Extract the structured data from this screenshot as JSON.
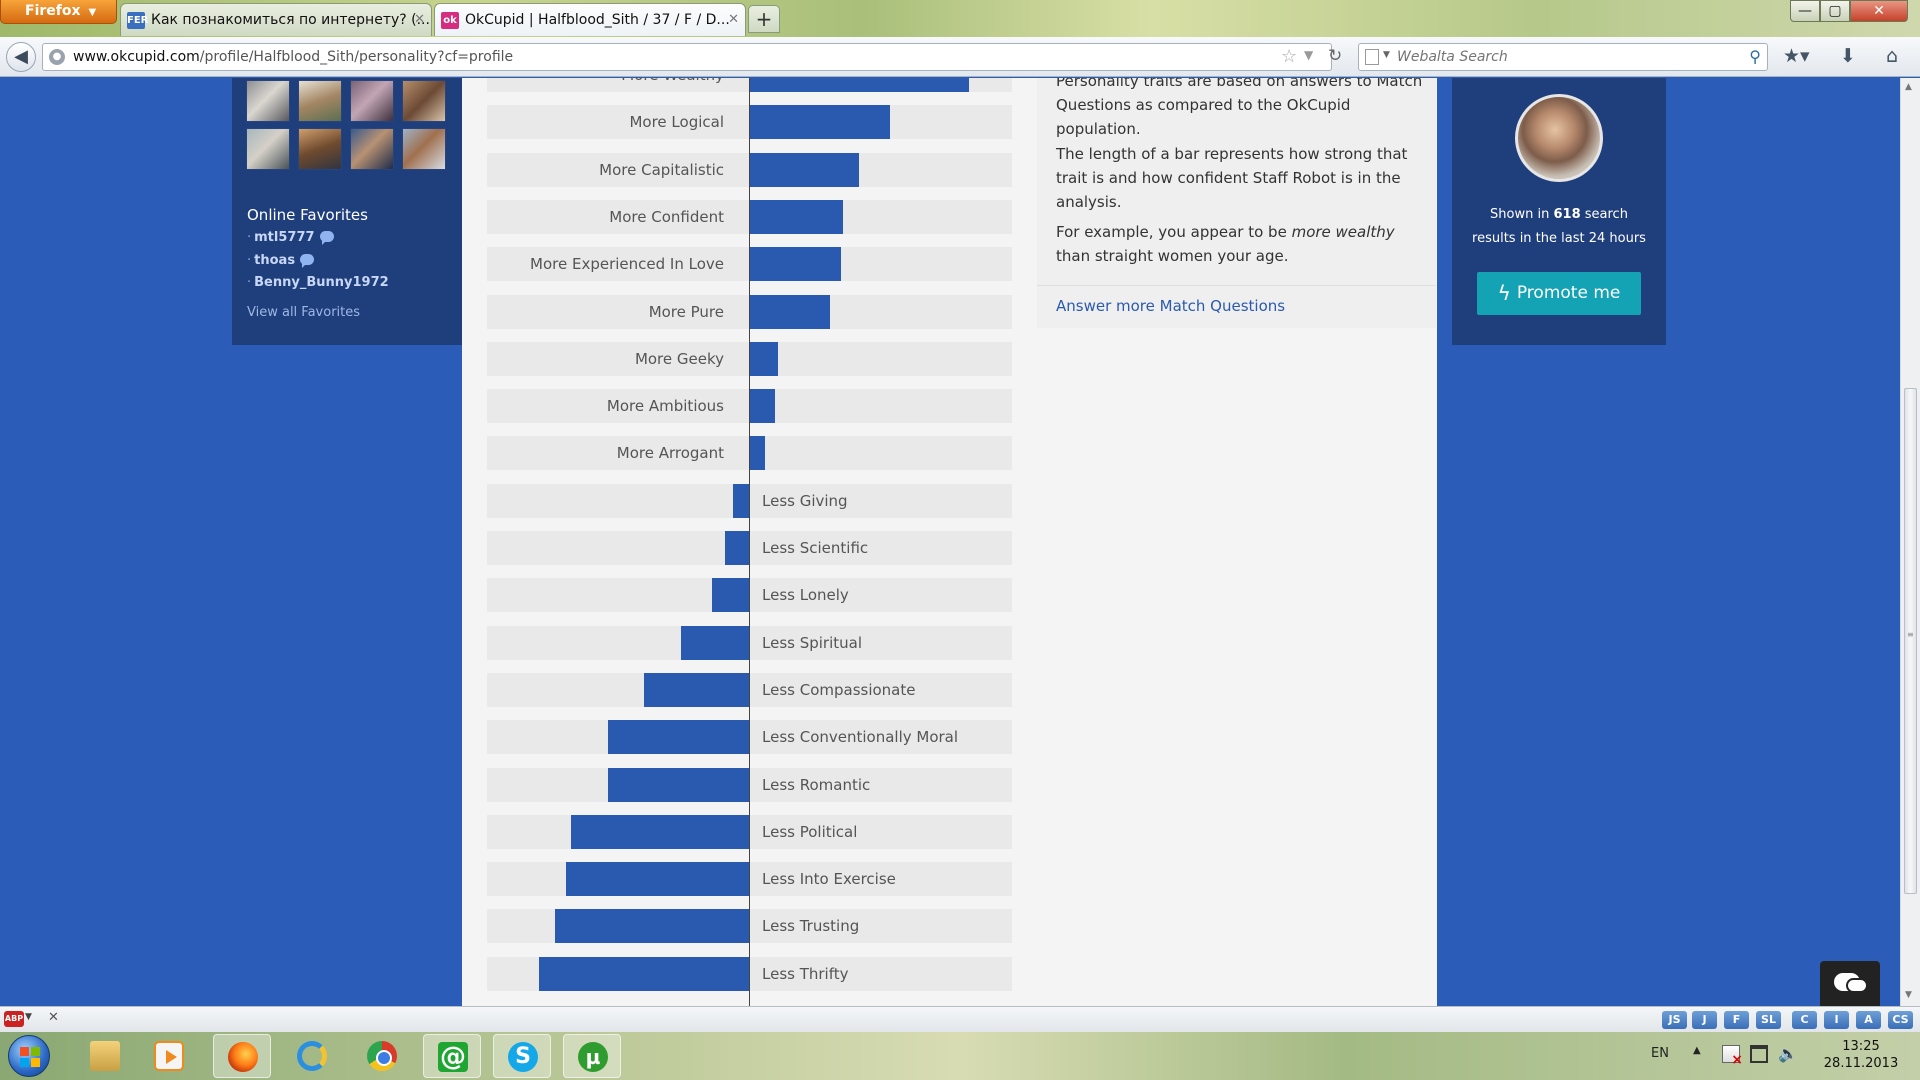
{
  "window": {
    "firefox_button": "Firefox",
    "tabs": [
      {
        "favicon": "FER",
        "title": "Как познакомиться по интернету? (..."
      },
      {
        "favicon": "ok",
        "title": "OkCupid | Halfblood_Sith / 37 / F / D..."
      }
    ],
    "new_tab": "+",
    "controls": {
      "minimize": "—",
      "maximize": "▢",
      "close": "✕"
    }
  },
  "navbar": {
    "url_host": "www.okcupid.com",
    "url_path": "/profile/Halfblood_Sith/personality?cf=profile",
    "search_placeholder": "Webalta Search"
  },
  "sidebar": {
    "favorites_heading": "Online Favorites",
    "favorites": [
      "mtl5777",
      "thoas",
      "Benny_Bunny1972"
    ],
    "view_all": "View all Favorites"
  },
  "personality": {
    "more": [
      {
        "label": "More Wealthy",
        "strength": 0.84
      },
      {
        "label": "More Logical",
        "strength": 0.54
      },
      {
        "label": "More Capitalistic",
        "strength": 0.42
      },
      {
        "label": "More Confident",
        "strength": 0.36
      },
      {
        "label": "More Experienced In Love",
        "strength": 0.35
      },
      {
        "label": "More Pure",
        "strength": 0.31
      },
      {
        "label": "More Geeky",
        "strength": 0.11
      },
      {
        "label": "More Ambitious",
        "strength": 0.1
      },
      {
        "label": "More Arrogant",
        "strength": 0.06
      }
    ],
    "less": [
      {
        "label": "Less Giving",
        "strength": 0.06
      },
      {
        "label": "Less Scientific",
        "strength": 0.09
      },
      {
        "label": "Less Lonely",
        "strength": 0.14
      },
      {
        "label": "Less Spiritual",
        "strength": 0.26
      },
      {
        "label": "Less Compassionate",
        "strength": 0.4
      },
      {
        "label": "Less Conventionally Moral",
        "strength": 0.54
      },
      {
        "label": "Less Romantic",
        "strength": 0.54
      },
      {
        "label": "Less Political",
        "strength": 0.68
      },
      {
        "label": "Less Into Exercise",
        "strength": 0.7
      },
      {
        "label": "Less Trusting",
        "strength": 0.74
      },
      {
        "label": "Less Thrifty",
        "strength": 0.8
      }
    ]
  },
  "info": {
    "p1": "Personality traits are based on answers to Match Questions as compared to the OkCupid population.",
    "p2": "The length of a bar represents how strong that trait is and how confident Staff Robot is in the analysis.",
    "p3_before": "For example, you appear to be ",
    "p3_em": "more wealthy",
    "p3_after": " than straight women your age.",
    "answer_link": "Answer more Match Questions"
  },
  "stats": {
    "shown_prefix": "Shown in ",
    "shown_count": "618",
    "shown_suffix": " search",
    "shown_line2": "results in the last 24 hours",
    "promote_label": "Promote me"
  },
  "addons": [
    "JS",
    "J",
    "F",
    "SL",
    "C",
    "I",
    "A",
    "CS"
  ],
  "taskbar": {
    "language": "EN",
    "time": "13:25",
    "date": "28.11.2013"
  },
  "colors": {
    "page_bg": "#2b5cb8",
    "sidebar_bg": "#1f3e7c",
    "bar": "#2a5aaf",
    "promote": "#14a3b5"
  }
}
